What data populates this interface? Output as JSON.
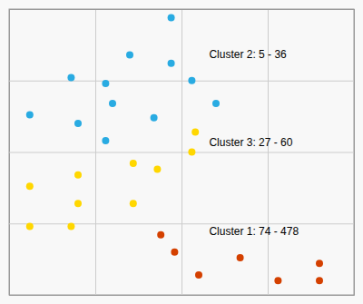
{
  "chart_data": {
    "type": "scatter",
    "series": [
      {
        "color": "#29ABE2",
        "x": [
          0.18,
          0.35,
          0.47,
          0.28,
          0.3,
          0.06,
          0.2,
          0.28,
          0.42,
          0.47,
          0.53,
          0.6
        ],
        "values": [
          0.76,
          0.84,
          0.97,
          0.74,
          0.67,
          0.63,
          0.6,
          0.54,
          0.62,
          0.81,
          0.75,
          0.67
        ]
      },
      {
        "color": "#FFD700",
        "x": [
          0.36,
          0.2,
          0.54,
          0.06,
          0.2,
          0.06,
          0.18,
          0.36,
          0.43,
          0.53
        ],
        "values": [
          0.46,
          0.42,
          0.57,
          0.38,
          0.32,
          0.24,
          0.24,
          0.32,
          0.44,
          0.5
        ]
      },
      {
        "color": "#D44000",
        "x": [
          0.44,
          0.48,
          0.55,
          0.67,
          0.78,
          0.9,
          0.9
        ],
        "values": [
          0.21,
          0.15,
          0.07,
          0.13,
          0.05,
          0.11,
          0.05
        ]
      }
    ],
    "annotations": [
      {
        "text": "Cluster 2: 5 - 36",
        "x": 0.58,
        "y": 0.84
      },
      {
        "text": "Cluster 3: 27 - 60",
        "x": 0.58,
        "y": 0.53
      },
      {
        "text": "Cluster 1: 74 - 478",
        "x": 0.58,
        "y": 0.22
      }
    ],
    "xlim": [
      0.0,
      1.0
    ],
    "ylim": [
      0.0,
      1.0
    ],
    "xticks": [
      0.25,
      0.5,
      0.75
    ],
    "yticks": [
      0.25,
      0.5,
      0.75
    ],
    "grid": true,
    "tick_labels": false
  }
}
